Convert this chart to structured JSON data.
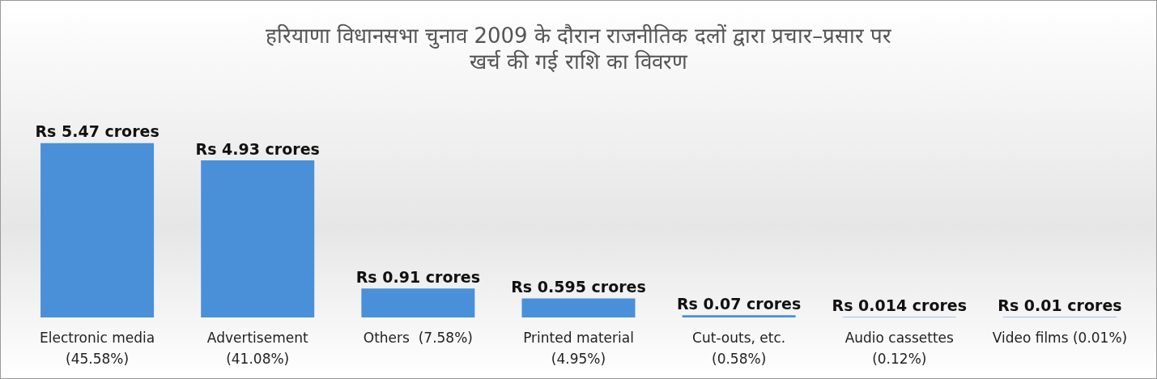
{
  "chart_data": {
    "type": "bar",
    "title": "हरियाणा विधानसभा चुनाव 2009 के दौरान राजनीतिक दलों द्वारा प्रचार–प्रसार पर\nखर्च की गई राशि का विवरण",
    "categories": [
      "Electronic media\n(45.58%)",
      "Advertisement\n(41.08%)",
      "Others  (7.58%)",
      "Printed material\n(4.95%)",
      "Cut-outs, etc.\n(0.58%)",
      "Audio cassettes\n(0.12%)",
      "Video films (0.01%)"
    ],
    "values": [
      5.47,
      4.93,
      0.91,
      0.595,
      0.07,
      0.014,
      0.01
    ],
    "value_labels": [
      "Rs 5.47 crores",
      "Rs 4.93 crores",
      "Rs 0.91 crores",
      "Rs 0.595 crores",
      "Rs 0.07 crores",
      "Rs 0.014 crores",
      "Rs 0.01 crores"
    ],
    "color": "#4a90d9"
  }
}
